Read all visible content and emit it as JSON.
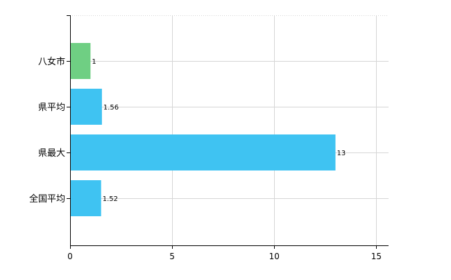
{
  "chart_data": {
    "type": "bar",
    "orientation": "horizontal",
    "categories": [
      "八女市",
      "県平均",
      "県最大",
      "全国平均"
    ],
    "values": [
      1,
      1.56,
      13,
      1.52
    ],
    "value_labels": [
      "1",
      "1.56",
      "13",
      "1.52"
    ],
    "xlim": [
      0,
      15.6
    ],
    "xticks": [
      0,
      5,
      10,
      15
    ],
    "xtick_labels": [
      "0",
      "5",
      "10",
      "15"
    ],
    "grid": true,
    "colors": {
      "highlight": "#6fcf83",
      "default": "#3fc3f2",
      "grid": "#d6d6d6",
      "axis": "#000000",
      "text": "#000000"
    },
    "highlight_index": 0
  }
}
